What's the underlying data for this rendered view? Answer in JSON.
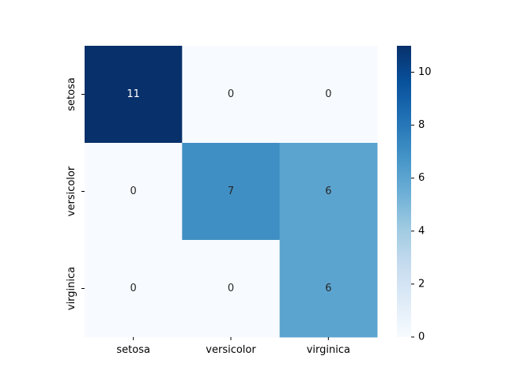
{
  "chart_data": {
    "type": "heatmap",
    "title": "",
    "xlabel": "",
    "ylabel": "",
    "x_categories": [
      "setosa",
      "versicolor",
      "virginica"
    ],
    "y_categories": [
      "setosa",
      "versicolor",
      "virginica"
    ],
    "values": [
      [
        11,
        0,
        0
      ],
      [
        0,
        7,
        6
      ],
      [
        0,
        0,
        6
      ]
    ],
    "annotations": true,
    "colormap": "Blues",
    "colormap_stops": [
      "#f7fbff",
      "#deebf7",
      "#c6dbef",
      "#9ecae1",
      "#6baed6",
      "#4292c6",
      "#2171b5",
      "#08519c",
      "#08306b"
    ],
    "vmin": 0,
    "vmax": 11,
    "colorbar": {
      "ticks": [
        0,
        2,
        4,
        6,
        8,
        10
      ]
    },
    "annotation_color_light": "#ffffff",
    "annotation_color_dark": "#262626",
    "grid": false,
    "legend": "colorbar-right"
  }
}
